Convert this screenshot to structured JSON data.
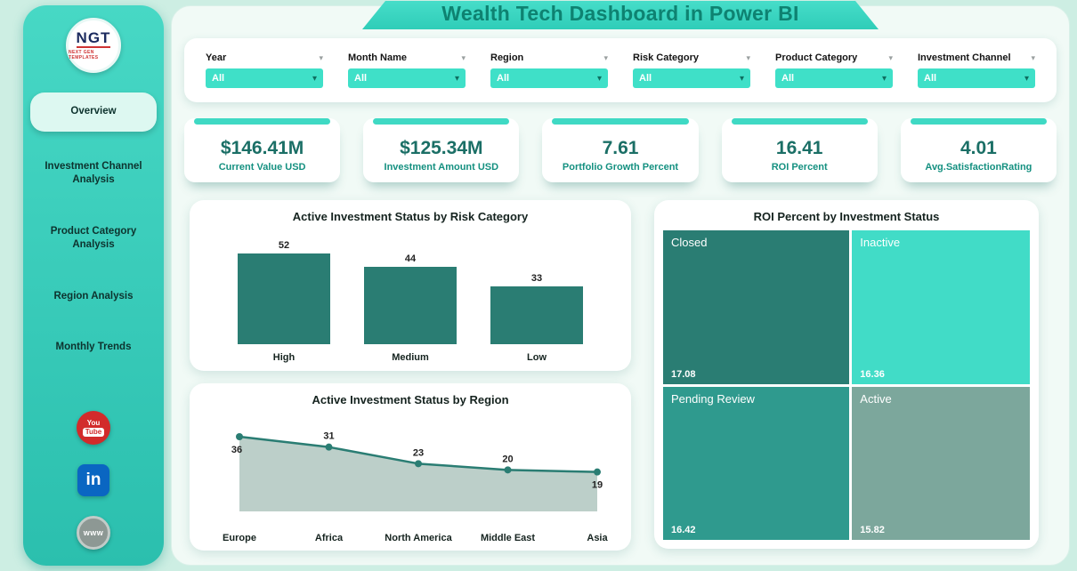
{
  "page": {
    "title": "Wealth Tech Dashboard in Power BI"
  },
  "sidebar": {
    "logo": {
      "abbr": "NGT",
      "tagline": "NEXT GEN TEMPLATES"
    },
    "items": [
      {
        "label": "Overview",
        "active": true
      },
      {
        "label": "Investment Channel Analysis",
        "active": false
      },
      {
        "label": "Product Category Analysis",
        "active": false
      },
      {
        "label": "Region Analysis",
        "active": false
      },
      {
        "label": "Monthly Trends",
        "active": false
      }
    ],
    "social": [
      {
        "icon": "youtube-icon",
        "label_top": "You",
        "label_bottom": "Tube"
      },
      {
        "icon": "linkedin-icon",
        "label": "in"
      },
      {
        "icon": "website-icon",
        "label": "www"
      }
    ]
  },
  "filters": [
    {
      "label": "Year",
      "value": "All"
    },
    {
      "label": "Month Name",
      "value": "All"
    },
    {
      "label": "Region",
      "value": "All"
    },
    {
      "label": "Risk Category",
      "value": "All"
    },
    {
      "label": "Product Category",
      "value": "All"
    },
    {
      "label": "Investment Channel",
      "value": "All"
    }
  ],
  "kpis": [
    {
      "value": "$146.41M",
      "label": "Current Value USD"
    },
    {
      "value": "$125.34M",
      "label": "Investment Amount USD"
    },
    {
      "value": "7.61",
      "label": "Portfolio Growth Percent"
    },
    {
      "value": "16.41",
      "label": "ROI Percent"
    },
    {
      "value": "4.01",
      "label": "Avg.SatisfactionRating"
    }
  ],
  "chart_data": [
    {
      "type": "bar",
      "title": "Active Investment Status by Risk Category",
      "categories": [
        "High",
        "Medium",
        "Low"
      ],
      "values": [
        52,
        44,
        33
      ],
      "ylim": [
        0,
        60
      ],
      "bar_color": "#2a7d73",
      "grid": false,
      "legend": "none"
    },
    {
      "type": "area",
      "title": "Active Investment Status by Region",
      "categories": [
        "Europe",
        "Africa",
        "North America",
        "Middle East",
        "Asia"
      ],
      "values": [
        36,
        31,
        23,
        20,
        19
      ],
      "label_side": [
        "below",
        "above",
        "above",
        "above",
        "below"
      ],
      "ylim": [
        0,
        42
      ],
      "line_color": "#2a7d73",
      "fill_color": "#bccfc9",
      "grid": false,
      "legend": "none"
    },
    {
      "type": "treemap",
      "title": "ROI Percent by Investment Status",
      "items": [
        {
          "label": "Closed",
          "value": "17.08",
          "color": "#2a7d73"
        },
        {
          "label": "Inactive",
          "value": "16.36",
          "color": "#41dcc7"
        },
        {
          "label": "Pending Review",
          "value": "16.42",
          "color": "#2f9a8e"
        },
        {
          "label": "Active",
          "value": "15.82",
          "color": "#7ca79c"
        }
      ]
    }
  ],
  "colors": {
    "accent": "#3fd9c4",
    "sidebar": "#33c9b8",
    "dark_teal": "#2a7d73",
    "kpi_value_text": "#1b6f66",
    "kpi_label_text": "#149080",
    "title_text": "#0e8271",
    "background_mint": "#cdeee3"
  }
}
